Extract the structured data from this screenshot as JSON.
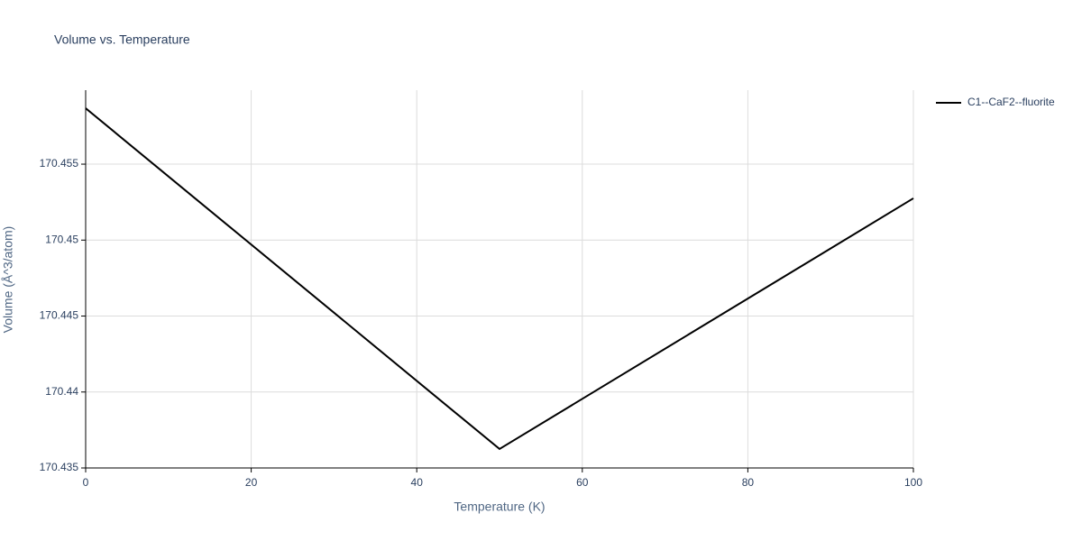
{
  "chart_data": {
    "type": "line",
    "title": "Volume vs. Temperature",
    "x_label": "Temperature (K)",
    "y_label": "Volume (Å^3/atom)",
    "x": [
      0,
      50,
      100
    ],
    "series": [
      {
        "name": "C1--CaF2--fluorite",
        "color": "#000000",
        "values": [
          170.45868,
          170.43625,
          170.45275
        ]
      }
    ],
    "xlim": [
      0,
      100
    ],
    "xticks": [
      0,
      20,
      40,
      60,
      80,
      100
    ],
    "ylim": [
      170.435,
      170.45987
    ],
    "yticks": [
      170.435,
      170.44,
      170.445,
      170.45,
      170.455
    ],
    "grid": true,
    "legend": "top-right"
  }
}
